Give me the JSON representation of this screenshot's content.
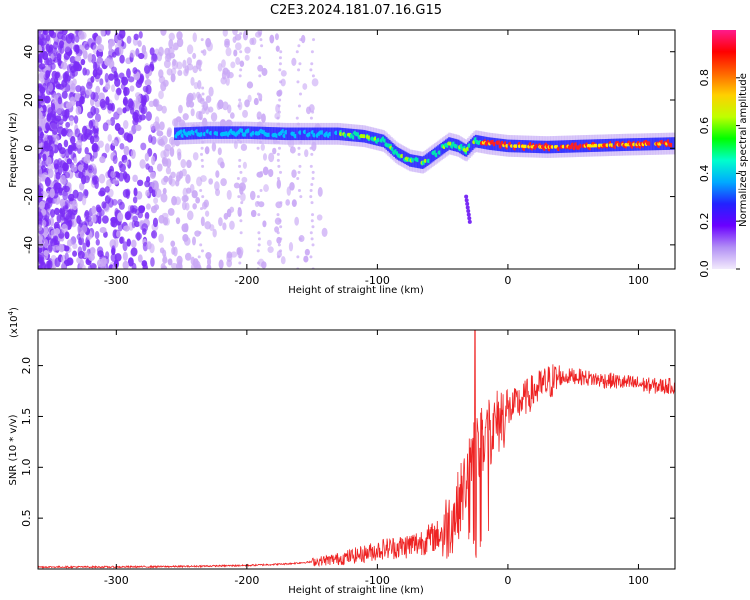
{
  "title": "C2E3.2024.181.07.16.G15",
  "chart_data": [
    {
      "type": "heatmap",
      "xlabel": "Height of straight line (km)",
      "ylabel": "Frequency (Hz)",
      "xlim": [
        -360,
        128
      ],
      "ylim": [
        -50,
        49
      ],
      "xticks": [
        -300,
        -200,
        -100,
        0,
        100
      ],
      "yticks": [
        -40,
        -20,
        0,
        20,
        40
      ],
      "colorbar": {
        "label": "Normalized spectral amplitude",
        "range": [
          0.0,
          1.0
        ],
        "ticks": [
          0.0,
          0.2,
          0.4,
          0.6,
          0.8
        ],
        "colormap": "rainbow",
        "stops": [
          "#f2eafc",
          "#b28ff5",
          "#6a00ff",
          "#2222ff",
          "#00aaff",
          "#00ffcc",
          "#00ff00",
          "#bfff00",
          "#ffd000",
          "#ff6600",
          "#ff0000",
          "#ff1a8c"
        ]
      },
      "ridge": {
        "description_x": [
          -255,
          -230,
          -200,
          -170,
          -150,
          -130,
          -110,
          -95,
          -85,
          -75,
          -65,
          -55,
          -45,
          -38,
          -32,
          -25,
          -15,
          0,
          30,
          60,
          90,
          128
        ],
        "y": [
          6,
          6.5,
          6.5,
          6,
          6,
          6,
          5,
          3,
          -2,
          -5,
          -6,
          -2,
          2,
          1,
          -1,
          3,
          2,
          1,
          0.5,
          1,
          1.5,
          2
        ]
      },
      "colors": {
        "noise": "#7a2cf5",
        "faint": "#c9a8f5"
      }
    },
    {
      "type": "line",
      "xlabel": "Height of straight line (km)",
      "ylabel": "SNR (10 * v/v)",
      "yscale_label": "(x10",
      "yscale_exp": "4",
      "yscale_close": ")",
      "xlim": [
        -360,
        128
      ],
      "ylim": [
        0,
        2.35
      ],
      "xticks": [
        -300,
        -200,
        -100,
        0,
        100
      ],
      "yticks": [
        "0.5",
        "1.0",
        "1.5",
        "2.0"
      ],
      "ytick_values": [
        0.5,
        1.0,
        1.5,
        2.0
      ],
      "series": [
        {
          "color": "#ee2222",
          "x": [
            -360,
            -300,
            -250,
            -200,
            -170,
            -150,
            -130,
            -110,
            -95,
            -80,
            -70,
            -60,
            -50,
            -45,
            -40,
            -35,
            -30,
            -25,
            -20,
            -15,
            -10,
            -5,
            0,
            10,
            20,
            30,
            40,
            50,
            60,
            70,
            80,
            90,
            100,
            110,
            128
          ],
          "y": [
            0.02,
            0.02,
            0.025,
            0.035,
            0.05,
            0.07,
            0.1,
            0.15,
            0.2,
            0.22,
            0.25,
            0.3,
            0.35,
            0.45,
            0.55,
            0.75,
            0.95,
            1.15,
            1.25,
            1.35,
            1.4,
            1.5,
            1.55,
            1.65,
            1.75,
            1.83,
            1.88,
            1.9,
            1.88,
            1.86,
            1.85,
            1.83,
            1.82,
            1.8,
            1.8
          ]
        }
      ]
    }
  ]
}
